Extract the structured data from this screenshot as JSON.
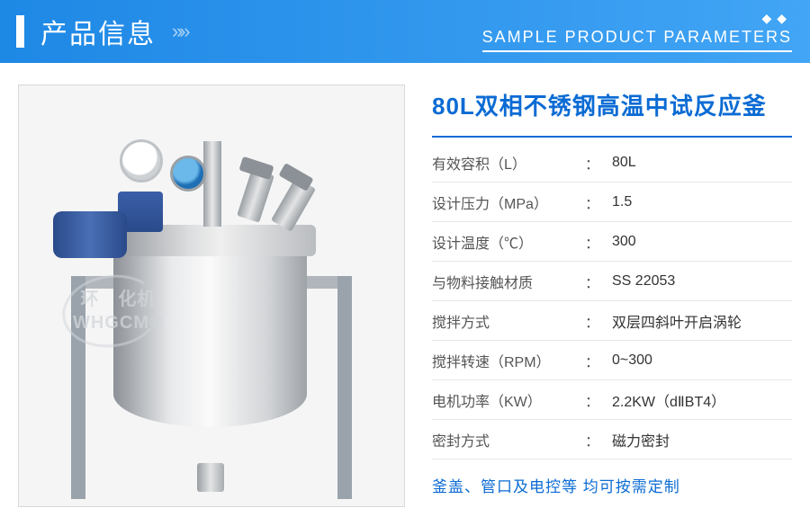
{
  "header": {
    "title_cn": "产品信息",
    "arrows": "»»",
    "diamonds": "◆◆",
    "subtitle_en": "SAMPLE PRODUCT PARAMETERS"
  },
  "product": {
    "title": "80L双相不锈钢高温中试反应釜",
    "specs": [
      {
        "label": "有效容积（L）",
        "value": "80L"
      },
      {
        "label": "设计压力（MPa）",
        "value": "1.5"
      },
      {
        "label": "设计温度（℃）",
        "value": "300"
      },
      {
        "label": "与物料接触材质",
        "value": "SS 22053"
      },
      {
        "label": "搅拌方式",
        "value": "双层四斜叶开启涡轮"
      },
      {
        "label": "搅拌转速（RPM）",
        "value": "0~300"
      },
      {
        "label": "电机功率（KW）",
        "value": "2.2KW（dⅡBT4）"
      },
      {
        "label": "密封方式",
        "value": "磁力密封"
      }
    ],
    "footnote": "釜盖、管口及电控等 均可按需定制"
  },
  "watermark": {
    "line1": "环　化机",
    "line2": "WHGCM®",
    "bottom": ""
  },
  "colors": {
    "header_grad_from": "#1e88e5",
    "header_grad_to": "#42a5f5",
    "accent": "#0b6bd4",
    "divider": "#e6e6e6",
    "text_label": "#555555",
    "text_value": "#333333"
  }
}
